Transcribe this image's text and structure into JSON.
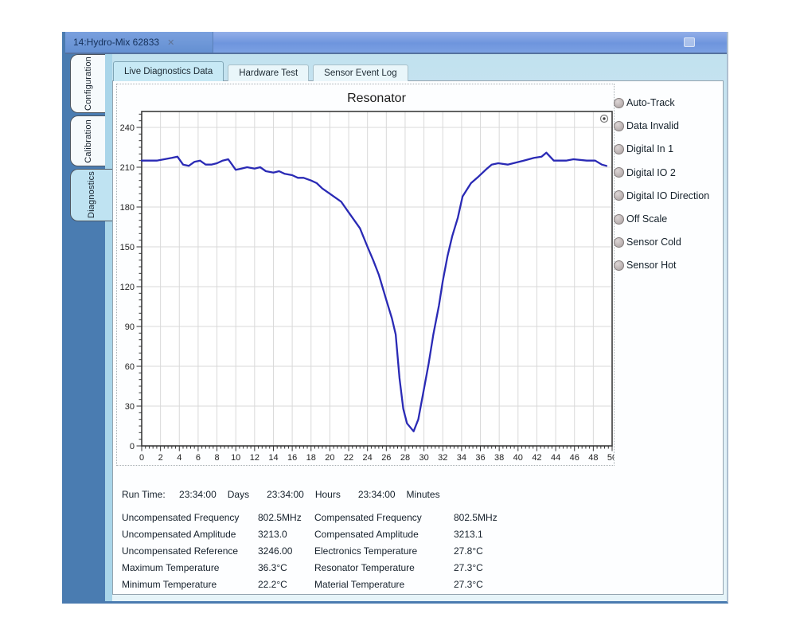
{
  "window": {
    "tab_title": "14:Hydro-Mix 62833",
    "close_glyph": "✕"
  },
  "side_tabs": [
    {
      "label": "Configuration",
      "active": false
    },
    {
      "label": "Calibration",
      "active": false
    },
    {
      "label": "Diagnostics",
      "active": true
    }
  ],
  "top_tabs": [
    {
      "label": "Live Diagnostics Data",
      "active": true
    },
    {
      "label": "Hardware Test",
      "active": false
    },
    {
      "label": "Sensor Event Log",
      "active": false
    }
  ],
  "indicators": [
    "Auto-Track",
    "Data Invalid",
    "Digital In 1",
    "Digital IO 2",
    "Digital IO Direction",
    "Off Scale",
    "Sensor Cold",
    "Sensor Hot"
  ],
  "indicator_led_color": "#b7aeae",
  "chart_data": {
    "type": "line",
    "title": "Resonator",
    "xlabel": "",
    "ylabel": "",
    "xlim": [
      0,
      50
    ],
    "ylim": [
      0,
      252
    ],
    "x_tick_step": 2,
    "y_tick_step": 30,
    "x_minor_step": 0.4,
    "y_minor_step": 5,
    "grid": true,
    "legend": false,
    "line_color": "#2a2ab5",
    "points": [
      [
        0,
        215
      ],
      [
        0.8,
        215
      ],
      [
        1.6,
        215
      ],
      [
        2.4,
        216
      ],
      [
        3.2,
        217
      ],
      [
        3.8,
        218
      ],
      [
        4.4,
        212
      ],
      [
        5,
        211
      ],
      [
        5.6,
        214
      ],
      [
        6.2,
        215
      ],
      [
        6.8,
        212
      ],
      [
        7.4,
        212
      ],
      [
        8,
        213
      ],
      [
        8.6,
        215
      ],
      [
        9.2,
        216
      ],
      [
        9.6,
        212
      ],
      [
        10,
        208
      ],
      [
        10.6,
        209
      ],
      [
        11.2,
        210
      ],
      [
        12,
        209
      ],
      [
        12.6,
        210
      ],
      [
        13.2,
        207
      ],
      [
        14,
        206
      ],
      [
        14.6,
        207
      ],
      [
        15.2,
        205
      ],
      [
        16,
        204
      ],
      [
        16.6,
        202
      ],
      [
        17.2,
        202
      ],
      [
        18,
        200
      ],
      [
        18.6,
        198
      ],
      [
        19.2,
        194
      ],
      [
        20,
        190
      ],
      [
        20.6,
        187
      ],
      [
        21.2,
        184
      ],
      [
        22,
        176
      ],
      [
        22.6,
        170
      ],
      [
        23.2,
        164
      ],
      [
        24,
        150
      ],
      [
        24.6,
        140
      ],
      [
        25.2,
        129
      ],
      [
        26,
        110
      ],
      [
        26.6,
        96
      ],
      [
        27,
        84
      ],
      [
        27.4,
        51
      ],
      [
        27.8,
        28
      ],
      [
        28.2,
        17
      ],
      [
        28.9,
        11
      ],
      [
        29.4,
        20
      ],
      [
        29.9,
        39
      ],
      [
        30.5,
        62
      ],
      [
        31,
        84
      ],
      [
        31.6,
        106
      ],
      [
        32,
        124
      ],
      [
        32.5,
        143
      ],
      [
        33,
        158
      ],
      [
        33.6,
        172
      ],
      [
        34.1,
        188
      ],
      [
        35,
        198
      ],
      [
        35.8,
        203
      ],
      [
        36.7,
        209
      ],
      [
        37.2,
        212
      ],
      [
        37.9,
        213
      ],
      [
        38.9,
        212
      ],
      [
        39.5,
        213
      ],
      [
        40.6,
        215
      ],
      [
        41.7,
        217
      ],
      [
        42.5,
        218
      ],
      [
        43,
        221
      ],
      [
        43.8,
        215
      ],
      [
        45.1,
        215
      ],
      [
        45.9,
        216
      ],
      [
        47.3,
        215
      ],
      [
        48.2,
        215
      ],
      [
        48.9,
        212
      ],
      [
        49.4,
        211
      ]
    ]
  },
  "run_time": {
    "label": "Run Time:",
    "segments": [
      {
        "value": "23:34:00",
        "unit": "Days"
      },
      {
        "value": "23:34:00",
        "unit": "Hours"
      },
      {
        "value": "23:34:00",
        "unit": "Minutes"
      }
    ]
  },
  "readings": [
    {
      "label_left": "Uncompensated Frequency",
      "value_left": "802.5MHz",
      "label_right": "Compensated Frequency",
      "value_right": "802.5MHz"
    },
    {
      "label_left": "Uncompensated Amplitude",
      "value_left": "3213.0",
      "label_right": "Compensated Amplitude",
      "value_right": "3213.1"
    },
    {
      "label_left": "Uncompensated Reference",
      "value_left": "3246.00",
      "label_right": "Electronics Temperature",
      "value_right": "27.8°C"
    },
    {
      "label_left": "Maximum Temperature",
      "value_left": "36.3°C",
      "label_right": "Resonator Temperature",
      "value_right": "27.3°C"
    },
    {
      "label_left": "Minimum Temperature",
      "value_left": "22.2°C",
      "label_right": "Material Temperature",
      "value_right": "27.3°C"
    }
  ]
}
